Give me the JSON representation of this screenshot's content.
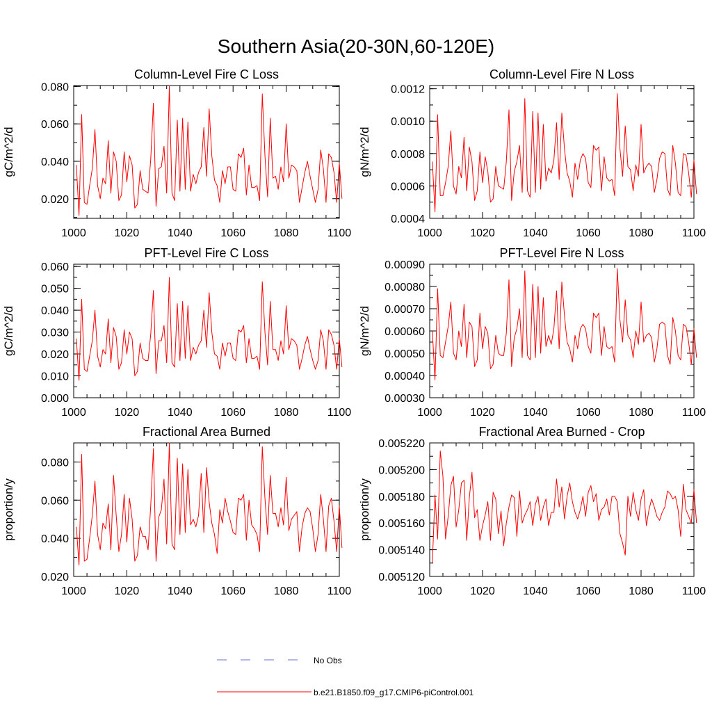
{
  "title": "Southern Asia(20-30N,60-120E)",
  "legend": [
    {
      "label": "No Obs",
      "color": "#6b6bd0",
      "style": "dashed"
    },
    {
      "label": "b.e21.B1850.f09_g17.CMIP6-piControl.001",
      "color": "#ff0000",
      "style": "solid"
    }
  ],
  "chart_data": [
    {
      "type": "line",
      "title": "Column-Level Fire C Loss",
      "ylabel": "gC/m^2/d",
      "xlim": [
        1000,
        1100
      ],
      "ylim": [
        0.0095,
        0.0805
      ],
      "x_ticks": [
        "1000",
        "1020",
        "1040",
        "1060",
        "1080",
        "1100"
      ],
      "y_ticks": [
        0.02,
        0.04,
        0.06,
        0.08
      ],
      "y_tick_labels": [
        "0.020",
        "0.040",
        "0.060",
        "0.080"
      ],
      "y_minor": 0.01,
      "x_start": 1001,
      "color": "#ff0000",
      "values": [
        0.038,
        0.011,
        0.065,
        0.018,
        0.017,
        0.027,
        0.036,
        0.057,
        0.027,
        0.02,
        0.031,
        0.028,
        0.051,
        0.023,
        0.045,
        0.04,
        0.019,
        0.022,
        0.045,
        0.029,
        0.043,
        0.038,
        0.015,
        0.017,
        0.035,
        0.025,
        0.024,
        0.023,
        0.041,
        0.071,
        0.016,
        0.036,
        0.037,
        0.048,
        0.023,
        0.08,
        0.023,
        0.019,
        0.062,
        0.024,
        0.063,
        0.025,
        0.061,
        0.024,
        0.033,
        0.028,
        0.034,
        0.037,
        0.058,
        0.032,
        0.068,
        0.043,
        0.03,
        0.027,
        0.018,
        0.035,
        0.028,
        0.037,
        0.037,
        0.025,
        0.024,
        0.044,
        0.042,
        0.047,
        0.022,
        0.038,
        0.026,
        0.026,
        0.027,
        0.019,
        0.076,
        0.043,
        0.021,
        0.063,
        0.031,
        0.032,
        0.025,
        0.037,
        0.029,
        0.06,
        0.031,
        0.038,
        0.037,
        0.035,
        0.018,
        0.026,
        0.034,
        0.04,
        0.032,
        0.025,
        0.018,
        0.025,
        0.046,
        0.036,
        0.018,
        0.044,
        0.042,
        0.034,
        0.018,
        0.039,
        0.02
      ]
    },
    {
      "type": "line",
      "title": "Column-Level Fire N Loss",
      "ylabel": "gN/m^2/d",
      "xlim": [
        1000,
        1100
      ],
      "ylim": [
        0.0004,
        0.00122
      ],
      "x_ticks": [
        "1000",
        "1020",
        "1040",
        "1060",
        "1080",
        "1100"
      ],
      "y_ticks": [
        0.0004,
        0.0006,
        0.0008,
        0.001,
        0.0012
      ],
      "y_tick_labels": [
        "0.0004",
        "0.0006",
        "0.0008",
        "0.0010",
        "0.0012"
      ],
      "y_minor": 0.0001,
      "x_start": 1001,
      "color": "#ff0000",
      "values": [
        0.00075,
        0.00044,
        0.00104,
        0.00054,
        0.00054,
        0.00062,
        0.00072,
        0.00094,
        0.0006,
        0.00055,
        0.00072,
        0.00065,
        0.0009,
        0.00057,
        0.00084,
        0.00075,
        0.00051,
        0.00057,
        0.00081,
        0.00062,
        0.00078,
        0.00069,
        0.0005,
        0.00052,
        0.00072,
        0.0006,
        0.00059,
        0.00058,
        0.00075,
        0.00107,
        0.00051,
        0.00069,
        0.00075,
        0.00085,
        0.00056,
        0.00114,
        0.00057,
        0.00053,
        0.00106,
        0.00056,
        0.00105,
        0.00058,
        0.00098,
        0.00063,
        0.00071,
        0.00068,
        0.00076,
        0.00099,
        0.00064,
        0.00105,
        0.00083,
        0.00068,
        0.00063,
        0.00053,
        0.00074,
        0.00064,
        0.00076,
        0.0008,
        0.00077,
        0.00062,
        0.00059,
        0.00085,
        0.00082,
        0.00084,
        0.00057,
        0.00078,
        0.00065,
        0.00063,
        0.00064,
        0.00054,
        0.00117,
        0.00083,
        0.00066,
        0.00097,
        0.00072,
        0.0007,
        0.00057,
        0.00073,
        0.00066,
        0.00098,
        0.00068,
        0.00072,
        0.00074,
        0.00072,
        0.00056,
        0.00064,
        0.00077,
        0.00081,
        0.0008,
        0.00058,
        0.00054,
        0.00085,
        0.00074,
        0.00056,
        0.00054,
        0.0008,
        0.00079,
        0.00068,
        0.00053,
        0.00076,
        0.00055
      ]
    },
    {
      "type": "line",
      "title": "PFT-Level Fire C Loss",
      "ylabel": "gC/m^2/d",
      "xlim": [
        1000,
        1100
      ],
      "ylim": [
        0.0,
        0.061
      ],
      "x_ticks": [
        "1000",
        "1020",
        "1040",
        "1060",
        "1080",
        "1100"
      ],
      "y_ticks": [
        0.0,
        0.01,
        0.02,
        0.03,
        0.04,
        0.05,
        0.06
      ],
      "y_tick_labels": [
        "0.000",
        "0.010",
        "0.020",
        "0.030",
        "0.040",
        "0.050",
        "0.060"
      ],
      "y_minor": 0.005,
      "x_start": 1001,
      "color": "#ff0000",
      "values": [
        0.027,
        0.008,
        0.045,
        0.013,
        0.012,
        0.019,
        0.026,
        0.04,
        0.019,
        0.014,
        0.022,
        0.02,
        0.036,
        0.016,
        0.032,
        0.028,
        0.013,
        0.016,
        0.031,
        0.02,
        0.03,
        0.027,
        0.01,
        0.012,
        0.025,
        0.018,
        0.017,
        0.017,
        0.029,
        0.049,
        0.011,
        0.026,
        0.026,
        0.033,
        0.016,
        0.055,
        0.016,
        0.014,
        0.043,
        0.017,
        0.044,
        0.018,
        0.042,
        0.017,
        0.023,
        0.02,
        0.024,
        0.026,
        0.04,
        0.023,
        0.048,
        0.03,
        0.02,
        0.019,
        0.013,
        0.025,
        0.019,
        0.025,
        0.025,
        0.018,
        0.017,
        0.031,
        0.03,
        0.033,
        0.016,
        0.027,
        0.018,
        0.018,
        0.019,
        0.013,
        0.053,
        0.03,
        0.015,
        0.044,
        0.022,
        0.022,
        0.017,
        0.026,
        0.02,
        0.042,
        0.022,
        0.027,
        0.026,
        0.024,
        0.013,
        0.018,
        0.024,
        0.028,
        0.022,
        0.017,
        0.013,
        0.017,
        0.031,
        0.026,
        0.013,
        0.031,
        0.029,
        0.024,
        0.013,
        0.027,
        0.014
      ]
    },
    {
      "type": "line",
      "title": "PFT-Level Fire N Loss",
      "ylabel": "gN/m^2/d",
      "xlim": [
        1000,
        1100
      ],
      "ylim": [
        0.0003,
        0.0009
      ],
      "x_ticks": [
        "1000",
        "1020",
        "1040",
        "1060",
        "1080",
        "1100"
      ],
      "y_ticks": [
        0.0003,
        0.0004,
        0.0005,
        0.0006,
        0.0007,
        0.0008,
        0.0009
      ],
      "y_tick_labels": [
        "0.00030",
        "0.00040",
        "0.00050",
        "0.00060",
        "0.00070",
        "0.00080",
        "0.00090"
      ],
      "y_minor": 5e-05,
      "x_start": 1001,
      "color": "#ff0000",
      "values": [
        0.0006,
        0.00038,
        0.00079,
        0.00049,
        0.00048,
        0.00055,
        0.00062,
        0.00073,
        0.0005,
        0.00047,
        0.0006,
        0.00053,
        0.00072,
        0.00048,
        0.00064,
        0.00062,
        0.00044,
        0.00047,
        0.00068,
        0.00052,
        0.00062,
        0.00059,
        0.00043,
        0.00045,
        0.00058,
        0.0005,
        0.00049,
        0.00049,
        0.00059,
        0.00083,
        0.00044,
        0.00057,
        0.00061,
        0.0007,
        0.00048,
        0.00087,
        0.00049,
        0.00047,
        0.00081,
        0.00048,
        0.0008,
        0.0005,
        0.00075,
        0.00053,
        0.00058,
        0.00054,
        0.00061,
        0.00078,
        0.00052,
        0.00082,
        0.00067,
        0.00055,
        0.00052,
        0.00046,
        0.00058,
        0.00052,
        0.00061,
        0.00063,
        0.00061,
        0.00053,
        0.0005,
        0.00068,
        0.00066,
        0.00068,
        0.00049,
        0.00062,
        0.00053,
        0.00052,
        0.00053,
        0.00046,
        0.00088,
        0.00065,
        0.00055,
        0.00074,
        0.00058,
        0.00056,
        0.00048,
        0.0006,
        0.00054,
        0.00073,
        0.00055,
        0.00058,
        0.00059,
        0.00057,
        0.00046,
        0.00052,
        0.00063,
        0.00064,
        0.00063,
        0.00049,
        0.00045,
        0.00066,
        0.0006,
        0.00049,
        0.00047,
        0.00063,
        0.00062,
        0.00055,
        0.00045,
        0.00061,
        0.00048
      ]
    },
    {
      "type": "line",
      "title": "Fractional Area Burned",
      "ylabel": "proportion/y",
      "xlim": [
        1000,
        1100
      ],
      "ylim": [
        0.02,
        0.09
      ],
      "x_ticks": [
        "1000",
        "1020",
        "1040",
        "1060",
        "1080",
        "1100"
      ],
      "y_ticks": [
        0.02,
        0.04,
        0.06,
        0.08
      ],
      "y_tick_labels": [
        "0.020",
        "0.040",
        "0.060",
        "0.080"
      ],
      "y_minor": 0.01,
      "x_start": 1001,
      "color": "#ff0000",
      "values": [
        0.046,
        0.026,
        0.084,
        0.028,
        0.029,
        0.04,
        0.052,
        0.07,
        0.042,
        0.034,
        0.048,
        0.045,
        0.058,
        0.034,
        0.073,
        0.052,
        0.033,
        0.042,
        0.063,
        0.038,
        0.061,
        0.05,
        0.028,
        0.031,
        0.046,
        0.041,
        0.041,
        0.034,
        0.057,
        0.087,
        0.028,
        0.051,
        0.055,
        0.071,
        0.037,
        0.09,
        0.037,
        0.034,
        0.082,
        0.042,
        0.079,
        0.043,
        0.076,
        0.047,
        0.05,
        0.046,
        0.052,
        0.074,
        0.043,
        0.077,
        0.059,
        0.048,
        0.042,
        0.032,
        0.055,
        0.048,
        0.061,
        0.054,
        0.049,
        0.043,
        0.042,
        0.061,
        0.06,
        0.063,
        0.039,
        0.06,
        0.047,
        0.045,
        0.042,
        0.033,
        0.088,
        0.061,
        0.042,
        0.073,
        0.053,
        0.053,
        0.046,
        0.056,
        0.047,
        0.072,
        0.044,
        0.05,
        0.052,
        0.054,
        0.033,
        0.046,
        0.053,
        0.056,
        0.054,
        0.045,
        0.033,
        0.042,
        0.063,
        0.05,
        0.033,
        0.057,
        0.061,
        0.049,
        0.033,
        0.057,
        0.035
      ]
    },
    {
      "type": "line",
      "title": "Fractional Area Burned - Crop",
      "ylabel": "proportion/y",
      "xlim": [
        1000,
        1100
      ],
      "ylim": [
        0.00512,
        0.00522
      ],
      "x_ticks": [
        "1000",
        "1020",
        "1040",
        "1060",
        "1080",
        "1100"
      ],
      "y_ticks": [
        0.00512,
        0.00514,
        0.00516,
        0.00518,
        0.0052,
        0.00522
      ],
      "y_tick_labels": [
        "0.005120",
        "0.005140",
        "0.005160",
        "0.005180",
        "0.005200",
        "0.005220"
      ],
      "y_minor": 1e-05,
      "x_start": 1001,
      "color": "#ff0000",
      "values": [
        0.00513,
        0.005181,
        0.005148,
        0.005214,
        0.005195,
        0.005148,
        0.005165,
        0.005188,
        0.005195,
        0.005157,
        0.00517,
        0.00519,
        0.005192,
        0.005147,
        0.005179,
        0.005198,
        0.005164,
        0.00517,
        0.005147,
        0.005158,
        0.005166,
        0.005176,
        0.005147,
        0.005183,
        0.005178,
        0.005152,
        0.005169,
        0.005143,
        0.00516,
        0.005172,
        0.005181,
        0.005179,
        0.00515,
        0.005184,
        0.00516,
        0.005166,
        0.00517,
        0.005176,
        0.005158,
        0.005174,
        0.00518,
        0.005162,
        0.005172,
        0.005178,
        0.005158,
        0.005168,
        0.005168,
        0.005193,
        0.005172,
        0.005187,
        0.005163,
        0.00518,
        0.00519,
        0.005176,
        0.005168,
        0.005163,
        0.00517,
        0.00518,
        0.005165,
        0.005183,
        0.005188,
        0.005176,
        0.005182,
        0.005162,
        0.00517,
        0.005172,
        0.005178,
        0.005166,
        0.00518,
        0.00518,
        0.005176,
        0.005152,
        0.005145,
        0.005136,
        0.00518,
        0.005165,
        0.005183,
        0.00517,
        0.005162,
        0.005178,
        0.005185,
        0.005158,
        0.00517,
        0.005178,
        0.005172,
        0.005165,
        0.005162,
        0.005168,
        0.005172,
        0.005184,
        0.005182,
        0.005178,
        0.00518,
        0.00517,
        0.00515,
        0.005189,
        0.00517,
        0.005165,
        0.00516,
        0.005185,
        0.00516
      ]
    }
  ]
}
